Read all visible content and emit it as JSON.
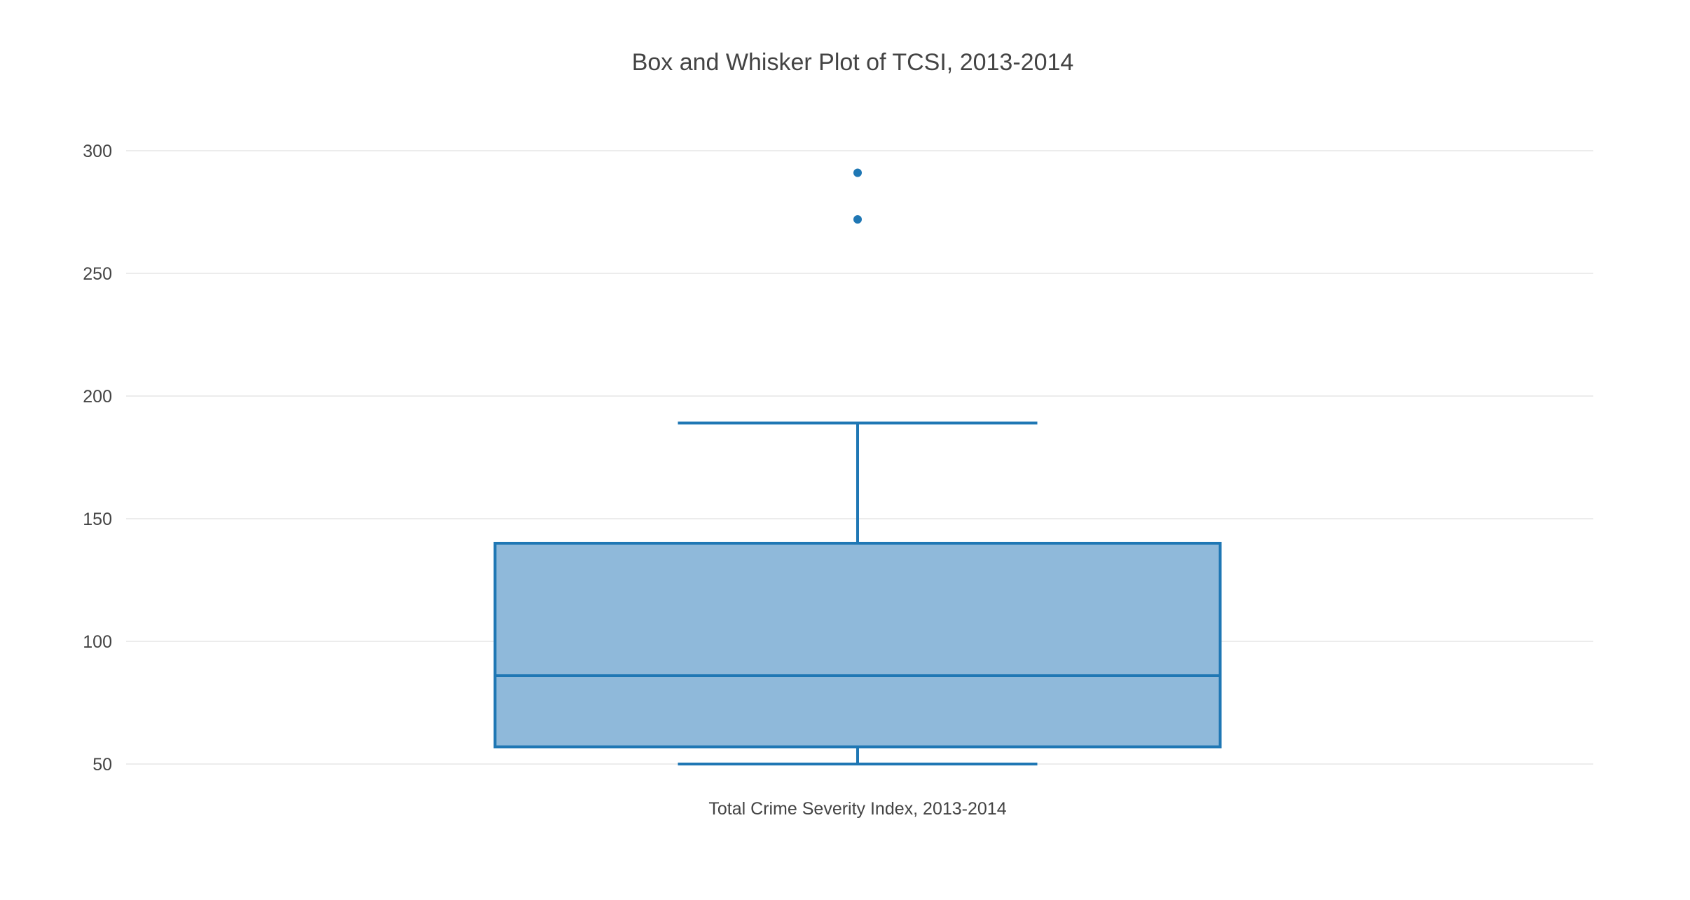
{
  "chart_data": {
    "type": "box",
    "title": "Box and Whisker Plot of TCSI, 2013-2014",
    "xlabel": "",
    "ylabel": "",
    "categories": [
      "Total Crime Severity Index, 2013-2014"
    ],
    "ylim": [
      45,
      315
    ],
    "yticks": [
      50,
      100,
      150,
      200,
      250,
      300
    ],
    "ytick_labels": [
      "50",
      "100",
      "150",
      "200",
      "250",
      "300"
    ],
    "grid": true,
    "legend": "none",
    "series": [
      {
        "category": "Total Crime Severity Index, 2013-2014",
        "lower_whisker": 50,
        "q1": 57,
        "median": 86,
        "q3": 140,
        "upper_whisker": 189,
        "outliers": [
          272,
          291
        ]
      }
    ],
    "colors": {
      "box_line": "#1f77b4",
      "box_fill": "#8fb9da",
      "outlier": "#1f77b4",
      "grid": "#e6e6e6",
      "text": "#444444"
    }
  }
}
